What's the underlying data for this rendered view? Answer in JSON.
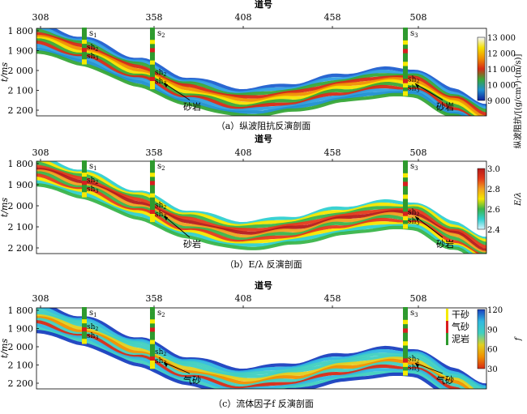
{
  "panels": [
    {
      "id": "a",
      "axis_title": "道号",
      "trace_ticks": [
        "308",
        "358",
        "408",
        "458",
        "508"
      ],
      "y_title": "t/ms",
      "y_ticks": [
        "1 800",
        "1 900",
        "2 000",
        "2 100",
        "2 200"
      ],
      "wells": [
        {
          "name": "s1",
          "labels": [
            "sh2",
            "sh3"
          ]
        },
        {
          "name": "s2",
          "labels": [
            "sh2",
            "sh3"
          ]
        },
        {
          "name": "s3",
          "labels": [
            "sh2",
            "sh3"
          ]
        }
      ],
      "annotations": [
        "砂岩",
        "砂岩"
      ],
      "colorbar": {
        "title": "纵波阻抗/[(g/cm³)·(m/s)]",
        "ticks": [
          "13 000",
          "12 000",
          "11 000",
          "10 000",
          "9 000"
        ],
        "colors": [
          "#f3f7ff",
          "#f5e000",
          "#f09000",
          "#d62a15",
          "#38a838",
          "#1f8fd0",
          "#10209a"
        ]
      },
      "caption": "（a）纵波阻抗反演剖面"
    },
    {
      "id": "b",
      "axis_title": "道号",
      "trace_ticks": [
        "308",
        "358",
        "408",
        "458",
        "508"
      ],
      "y_title": "t/ms",
      "y_ticks": [
        "1 800",
        "1 900",
        "2 000",
        "2 100",
        "2 200"
      ],
      "wells": [
        {
          "name": "s1",
          "labels": [
            "sh2",
            "sh3"
          ]
        },
        {
          "name": "s2",
          "labels": [
            "sh2",
            "sh3"
          ]
        },
        {
          "name": "s3",
          "labels": [
            "sh2",
            "sh3"
          ]
        }
      ],
      "annotations": [
        "砂岩",
        "砂岩"
      ],
      "colorbar": {
        "title": "E/λ",
        "ticks": [
          "3.0",
          "2.8",
          "2.6",
          "2.4"
        ],
        "colors": [
          "#b51b1b",
          "#e43a1a",
          "#f0a020",
          "#f5e600",
          "#3ab54a",
          "#30d0d0",
          "#d8f4ff"
        ]
      },
      "caption": "（b）E/λ 反演剖面"
    },
    {
      "id": "c",
      "axis_title": "道号",
      "trace_ticks": [
        "308",
        "358",
        "408",
        "458",
        "508"
      ],
      "y_title": "t/ms",
      "y_ticks": [
        "1 800",
        "1 900",
        "2 000",
        "2 100",
        "2 200"
      ],
      "wells": [
        {
          "name": "s1",
          "labels": [
            "sh2",
            "sh3"
          ]
        },
        {
          "name": "s2",
          "labels": [
            "sh2",
            "sh3"
          ]
        },
        {
          "name": "s3",
          "labels": [
            "sh2",
            "sh3"
          ]
        }
      ],
      "annotations": [
        "气砂",
        "气砂"
      ],
      "legend": [
        {
          "label": "干砂",
          "color": "#f5ea00"
        },
        {
          "label": "气砂",
          "color": "#d81e1e"
        },
        {
          "label": "泥岩",
          "color": "#2e9a2e"
        }
      ],
      "colorbar": {
        "title": "f",
        "ticks": [
          "120",
          "90",
          "60",
          "30"
        ],
        "colors": [
          "#1a40c0",
          "#30b8e0",
          "#40d0c0",
          "#e2d020",
          "#f09000",
          "#d62a15"
        ]
      },
      "caption": "（c）流体因子f 反演剖面"
    }
  ]
}
